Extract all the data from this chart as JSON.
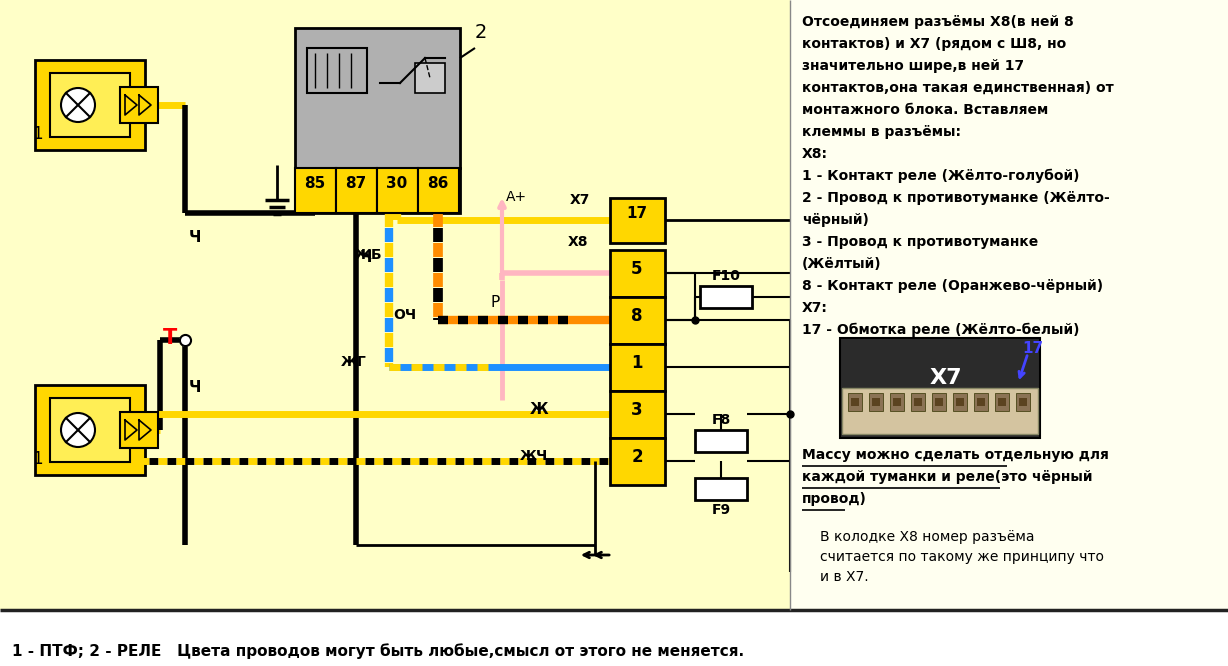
{
  "bg_color": "#fffff5",
  "diagram_bg": "#ffffc8",
  "bottom_bar_bg": "#ffffff",
  "title_bottom": "1 - ПТФ; 2 - РЕЛЕ   Цвета проводов могут быть любые,смысл от этого не меняется.",
  "relay_pins": [
    "85",
    "87",
    "30",
    "86"
  ],
  "x8_pins": [
    "5",
    "8",
    "1",
    "3",
    "2"
  ],
  "x7_pin": "17",
  "right_text_lines": [
    "Отсоединяем разъёмы Х8(в ней 8",
    "контактов) и Х7 (рядом с Ш8, но",
    "значительно шире,в ней 17",
    "контактов,она такая единственная) от",
    "монтажного блока. Вставляем",
    "клеммы в разъёмы:",
    "Х8:",
    "1 - Контакт реле (Жёлто-голубой)",
    "2 - Провод к противотуманке (Жёлто-",
    "чёрный)",
    "3 - Провод к противотуманке",
    "(Жёлтый)",
    "8 - Контакт реле (Оранжево-чёрный)",
    "Х7:",
    "17 - Обмотка реле (Жёлто-белый)"
  ],
  "massa_lines": [
    "Массу можно сделать отдельную для",
    "каждой туманки и реле(это чёрный",
    "провод)"
  ],
  "bottom_right_lines": [
    "В колодке Х8 номер разъёма",
    "считается по такому же принципу что",
    "и в Х7."
  ],
  "col_black": "#000000",
  "col_yellow": "#FFD700",
  "col_pink": "#FFB6C1",
  "col_orange": "#FF8C00",
  "col_blue": "#1E90FF",
  "col_gray": "#AAAAAA",
  "col_relay_bg": "#B0B0B0",
  "col_white": "#FFFFFF"
}
